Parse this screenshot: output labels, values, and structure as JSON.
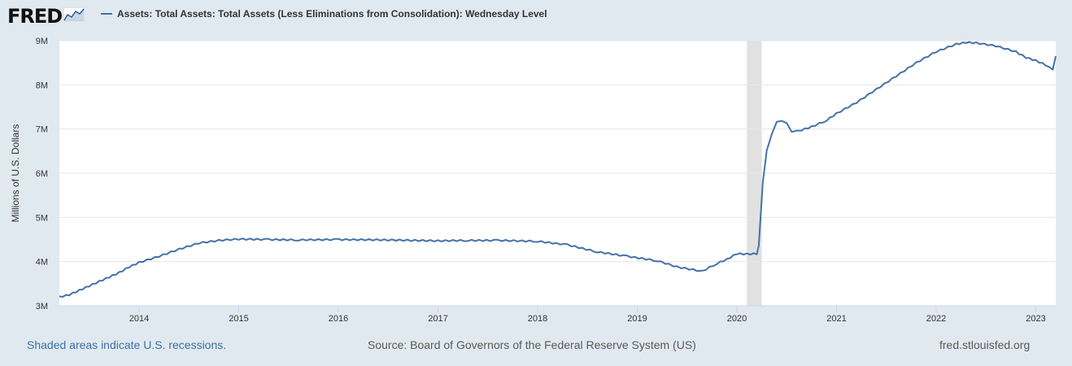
{
  "logo": {
    "text": "FRED",
    "icon": "fred-line-chart-icon"
  },
  "legend": {
    "label": "Assets: Total Assets: Total Assets (Less Eliminations from Consolidation): Wednesday Level",
    "color": "#4572a7"
  },
  "footer": {
    "recession_note": "Shaded areas indicate U.S. recessions.",
    "source": "Source: Board of Governors of the Federal Reserve System (US)",
    "site": "fred.stlouisfed.org"
  },
  "chart_data": {
    "type": "line",
    "title": "",
    "xlabel": "",
    "ylabel": "Millions of U.S. Dollars",
    "xlim": [
      2013.2,
      2023.2
    ],
    "ylim": [
      3,
      9
    ],
    "y_ticks": [
      3,
      4,
      5,
      6,
      7,
      8,
      9
    ],
    "y_tick_labels": [
      "3M",
      "4M",
      "5M",
      "6M",
      "7M",
      "8M",
      "9M"
    ],
    "x_ticks": [
      2014,
      2015,
      2016,
      2017,
      2018,
      2019,
      2020,
      2021,
      2022,
      2023
    ],
    "x_tick_labels": [
      "2014",
      "2015",
      "2016",
      "2017",
      "2018",
      "2019",
      "2020",
      "2021",
      "2022",
      "2023"
    ],
    "grid": "horizontal",
    "recession_shading": [
      [
        2020.1,
        2020.25
      ]
    ],
    "series": [
      {
        "name": "Assets: Total Assets: Total Assets (Less Eliminations from Consolidation): Wednesday Level",
        "color": "#4572a7",
        "x": [
          2013.2,
          2013.3,
          2013.4,
          2013.5,
          2013.6,
          2013.7,
          2013.8,
          2013.9,
          2014.0,
          2014.2,
          2014.4,
          2014.6,
          2014.8,
          2015.0,
          2015.3,
          2015.6,
          2016.0,
          2016.5,
          2017.0,
          2017.3,
          2017.6,
          2018.0,
          2018.3,
          2018.6,
          2018.9,
          2019.2,
          2019.4,
          2019.6,
          2019.65,
          2019.8,
          2019.9,
          2020.0,
          2020.1,
          2020.2,
          2020.22,
          2020.26,
          2020.3,
          2020.35,
          2020.4,
          2020.45,
          2020.5,
          2020.55,
          2020.6,
          2020.65,
          2020.75,
          2020.9,
          2021.0,
          2021.2,
          2021.4,
          2021.6,
          2021.8,
          2022.0,
          2022.2,
          2022.3,
          2022.4,
          2022.6,
          2022.8,
          2022.9,
          2023.0,
          2023.1,
          2023.17,
          2023.2
        ],
        "y": [
          3.2,
          3.25,
          3.35,
          3.45,
          3.55,
          3.65,
          3.75,
          3.88,
          3.98,
          4.12,
          4.28,
          4.42,
          4.48,
          4.51,
          4.5,
          4.49,
          4.5,
          4.49,
          4.47,
          4.48,
          4.48,
          4.46,
          4.38,
          4.22,
          4.12,
          4.02,
          3.88,
          3.8,
          3.78,
          3.96,
          4.05,
          4.18,
          4.17,
          4.18,
          4.35,
          5.8,
          6.5,
          6.9,
          7.15,
          7.2,
          7.12,
          6.95,
          6.95,
          6.98,
          7.05,
          7.2,
          7.35,
          7.6,
          7.9,
          8.2,
          8.5,
          8.75,
          8.92,
          8.96,
          8.95,
          8.88,
          8.75,
          8.62,
          8.55,
          8.45,
          8.33,
          8.65
        ]
      }
    ]
  }
}
